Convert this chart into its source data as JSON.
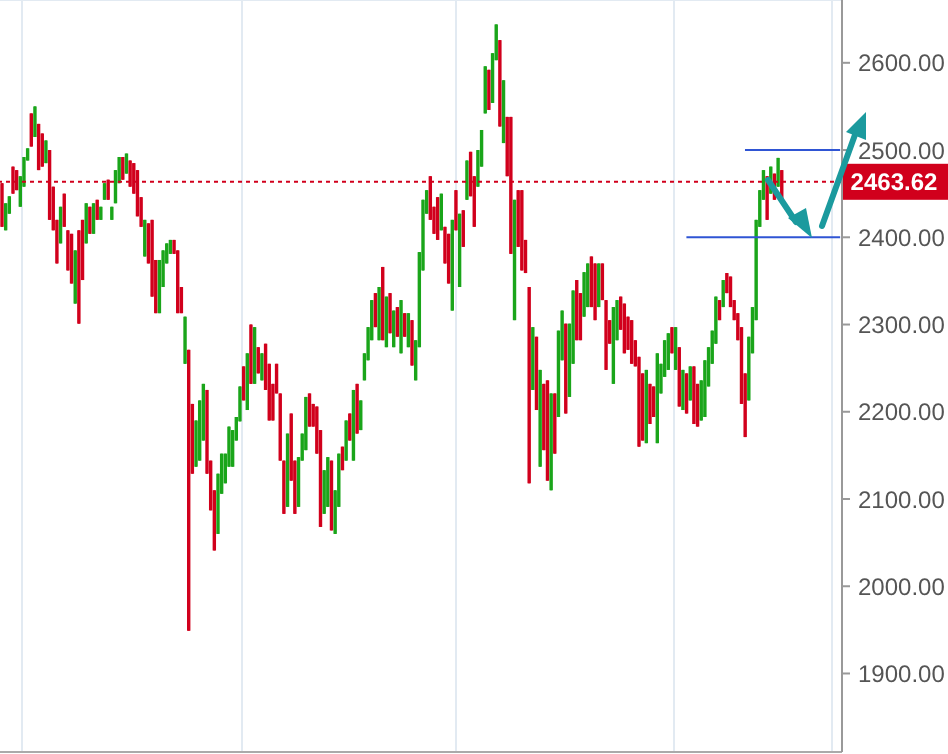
{
  "chart_data": {
    "type": "candlestick",
    "categories": [
      null,
      null,
      null,
      null,
      null,
      null,
      null,
      null,
      null,
      null,
      null,
      null,
      null,
      null,
      null,
      null,
      null,
      null,
      null,
      null,
      null,
      null,
      null,
      null,
      null,
      null,
      null,
      null,
      null,
      null,
      null,
      null,
      null,
      null,
      null,
      null,
      null,
      null,
      null,
      null,
      null,
      null,
      null,
      null,
      null,
      null,
      null,
      null,
      null,
      null,
      null,
      null,
      null,
      null,
      null,
      null,
      null,
      null,
      null,
      null,
      null,
      null,
      null,
      null,
      null,
      null,
      null,
      null,
      null,
      null,
      null,
      null,
      null,
      null,
      null,
      null,
      null,
      null,
      null,
      null,
      null,
      null,
      null,
      null,
      null,
      null,
      null,
      null,
      null,
      null,
      null,
      null,
      null,
      null,
      null,
      null,
      null,
      null,
      null,
      null,
      null,
      null,
      null,
      null,
      null,
      null,
      null,
      null,
      null,
      null,
      null,
      null,
      null,
      null,
      null,
      null,
      null,
      null,
      null,
      null,
      null,
      null,
      null,
      null,
      null,
      null,
      null,
      null,
      null,
      null,
      null,
      null,
      null,
      null,
      null,
      null,
      null,
      null,
      null,
      null,
      null,
      null,
      null,
      null,
      null,
      null,
      null,
      null,
      null,
      null,
      null,
      null,
      null,
      null,
      null,
      null,
      null,
      null,
      null,
      null,
      null,
      null,
      null,
      null,
      null,
      null,
      null,
      null,
      null,
      null,
      null,
      null,
      null,
      null,
      null,
      null,
      null,
      null,
      null,
      null,
      null,
      null,
      null,
      null,
      null,
      null,
      null,
      null,
      null,
      null,
      null,
      null,
      null,
      null,
      null,
      null,
      null,
      null,
      null,
      null,
      null,
      null,
      null,
      null,
      null,
      null,
      null,
      null,
      null,
      null,
      null,
      null,
      null,
      null,
      null,
      null,
      null,
      null,
      null,
      null,
      null,
      null,
      null,
      null,
      null,
      null,
      null,
      null,
      null,
      null
    ],
    "ohlc": [
      [
        2462,
        2462,
        2412,
        2412
      ],
      [
        2408,
        2439,
        2408,
        2439
      ],
      [
        2427,
        2447,
        2427,
        2447
      ],
      [
        2481,
        2481,
        2450,
        2450
      ],
      [
        2477,
        2477,
        2454,
        2454
      ],
      [
        2435,
        2470,
        2435,
        2470
      ],
      [
        2458,
        2492,
        2458,
        2492
      ],
      [
        2488,
        2502,
        2488,
        2502
      ],
      [
        2542,
        2542,
        2504,
        2504
      ],
      [
        2515,
        2550,
        2515,
        2550
      ],
      [
        2530,
        2530,
        2477,
        2477
      ],
      [
        2519,
        2519,
        2481,
        2481
      ],
      [
        2485,
        2511,
        2485,
        2511
      ],
      [
        2500,
        2500,
        2420,
        2420
      ],
      [
        2458,
        2458,
        2408,
        2408
      ],
      [
        2420,
        2420,
        2370,
        2370
      ],
      [
        2393,
        2435,
        2393,
        2435
      ],
      [
        2450,
        2450,
        2412,
        2412
      ],
      [
        2408,
        2408,
        2362,
        2362
      ],
      [
        2404,
        2404,
        2347,
        2347
      ],
      [
        2324,
        2385,
        2324,
        2385
      ],
      [
        2408,
        2408,
        2301,
        2301
      ],
      [
        2420,
        2420,
        2351,
        2351
      ],
      [
        2393,
        2439,
        2393,
        2439
      ],
      [
        2435,
        2435,
        2404,
        2404
      ],
      [
        2404,
        2439,
        2404,
        2439
      ],
      [
        2443,
        2443,
        2420,
        2420
      ],
      [
        2420,
        2435,
        2420,
        2435
      ],
      [
        2443,
        2462,
        2443,
        2462
      ],
      [
        2466,
        2466,
        2443,
        2443
      ],
      [
        2420,
        2435,
        2420,
        2435
      ],
      [
        2439,
        2477,
        2439,
        2477
      ],
      [
        2462,
        2492,
        2462,
        2492
      ],
      [
        2492,
        2492,
        2466,
        2466
      ],
      [
        2473,
        2496,
        2473,
        2496
      ],
      [
        2488,
        2488,
        2458,
        2458
      ],
      [
        2485,
        2485,
        2450,
        2450
      ],
      [
        2477,
        2477,
        2424,
        2424
      ],
      [
        2446,
        2446,
        2412,
        2412
      ],
      [
        2378,
        2420,
        2378,
        2420
      ],
      [
        2416,
        2416,
        2370,
        2370
      ],
      [
        2420,
        2420,
        2332,
        2332
      ],
      [
        2374,
        2374,
        2313,
        2313
      ],
      [
        2313,
        2374,
        2313,
        2374
      ],
      [
        2343,
        2385,
        2343,
        2385
      ],
      [
        2370,
        2393,
        2370,
        2393
      ],
      [
        2381,
        2397,
        2381,
        2397
      ],
      [
        2397,
        2397,
        2381,
        2381
      ],
      [
        2385,
        2385,
        2313,
        2313
      ],
      [
        2343,
        2343,
        2313,
        2313
      ],
      [
        2255,
        2309,
        2255,
        2309
      ],
      [
        2271,
        2271,
        1949,
        1949
      ],
      [
        2209,
        2209,
        2129,
        2129
      ],
      [
        2137,
        2190,
        2137,
        2190
      ],
      [
        2144,
        2213,
        2144,
        2213
      ],
      [
        2167,
        2232,
        2167,
        2232
      ],
      [
        2225,
        2225,
        2129,
        2129
      ],
      [
        2144,
        2144,
        2087,
        2087
      ],
      [
        2110,
        2110,
        2041,
        2041
      ],
      [
        2060,
        2129,
        2060,
        2129
      ],
      [
        2106,
        2152,
        2106,
        2152
      ],
      [
        2118,
        2152,
        2118,
        2152
      ],
      [
        2137,
        2183,
        2137,
        2183
      ],
      [
        2137,
        2179,
        2137,
        2179
      ],
      [
        2167,
        2194,
        2167,
        2194
      ],
      [
        2189,
        2229,
        2189,
        2229
      ],
      [
        2252,
        2252,
        2213,
        2213
      ],
      [
        2202,
        2267,
        2202,
        2267
      ],
      [
        2300,
        2300,
        2232,
        2232
      ],
      [
        2232,
        2297,
        2232,
        2297
      ],
      [
        2274,
        2274,
        2244,
        2244
      ],
      [
        2236,
        2267,
        2236,
        2267
      ],
      [
        2278,
        2278,
        2225,
        2225
      ],
      [
        2255,
        2255,
        2190,
        2190
      ],
      [
        2232,
        2232,
        2190,
        2190
      ],
      [
        2255,
        2255,
        2221,
        2221
      ],
      [
        2221,
        2221,
        2144,
        2144
      ],
      [
        2144,
        2144,
        2083,
        2083
      ],
      [
        2091,
        2175,
        2091,
        2175
      ],
      [
        2198,
        2198,
        2121,
        2121
      ],
      [
        2144,
        2144,
        2083,
        2083
      ],
      [
        2091,
        2148,
        2091,
        2148
      ],
      [
        2144,
        2175,
        2144,
        2175
      ],
      [
        2156,
        2217,
        2156,
        2217
      ],
      [
        2221,
        2221,
        2183,
        2183
      ],
      [
        2209,
        2209,
        2183,
        2183
      ],
      [
        2206,
        2206,
        2152,
        2152
      ],
      [
        2179,
        2179,
        2068,
        2068
      ],
      [
        2083,
        2133,
        2083,
        2133
      ],
      [
        2091,
        2148,
        2091,
        2148
      ],
      [
        2144,
        2144,
        2064,
        2064
      ],
      [
        2060,
        2110,
        2060,
        2110
      ],
      [
        2091,
        2152,
        2091,
        2152
      ],
      [
        2160,
        2160,
        2133,
        2133
      ],
      [
        2144,
        2190,
        2144,
        2190
      ],
      [
        2198,
        2198,
        2167,
        2167
      ],
      [
        2144,
        2225,
        2144,
        2225
      ],
      [
        2232,
        2232,
        2175,
        2175
      ],
      [
        2179,
        2213,
        2179,
        2213
      ],
      [
        2236,
        2267,
        2236,
        2267
      ],
      [
        2259,
        2297,
        2259,
        2297
      ],
      [
        2282,
        2328,
        2282,
        2328
      ],
      [
        2336,
        2336,
        2297,
        2297
      ],
      [
        2282,
        2343,
        2282,
        2343
      ],
      [
        2366,
        2366,
        2282,
        2282
      ],
      [
        2274,
        2332,
        2274,
        2332
      ],
      [
        2336,
        2336,
        2290,
        2290
      ],
      [
        2274,
        2316,
        2274,
        2316
      ],
      [
        2320,
        2320,
        2286,
        2286
      ],
      [
        2267,
        2328,
        2267,
        2328
      ],
      [
        2313,
        2313,
        2286,
        2286
      ],
      [
        2274,
        2313,
        2274,
        2313
      ],
      [
        2305,
        2305,
        2253,
        2253
      ],
      [
        2236,
        2282,
        2236,
        2282
      ],
      [
        2274,
        2383,
        2274,
        2383
      ],
      [
        2362,
        2443,
        2362,
        2443
      ],
      [
        2427,
        2454,
        2427,
        2454
      ],
      [
        2470,
        2470,
        2420,
        2420
      ],
      [
        2435,
        2435,
        2404,
        2404
      ],
      [
        2446,
        2446,
        2397,
        2397
      ],
      [
        2408,
        2450,
        2408,
        2450
      ],
      [
        2412,
        2412,
        2370,
        2370
      ],
      [
        2404,
        2404,
        2347,
        2347
      ],
      [
        2316,
        2420,
        2316,
        2420
      ],
      [
        2454,
        2454,
        2408,
        2408
      ],
      [
        2343,
        2427,
        2343,
        2427
      ],
      [
        2431,
        2431,
        2389,
        2389
      ],
      [
        2443,
        2488,
        2443,
        2488
      ],
      [
        2498,
        2498,
        2447,
        2447
      ],
      [
        2470,
        2470,
        2412,
        2412
      ],
      [
        2458,
        2500,
        2458,
        2500
      ],
      [
        2481,
        2523,
        2481,
        2523
      ],
      [
        2542,
        2596,
        2542,
        2596
      ],
      [
        2592,
        2592,
        2546,
        2546
      ],
      [
        2554,
        2611,
        2554,
        2611
      ],
      [
        2603,
        2644,
        2603,
        2644
      ],
      [
        2626,
        2626,
        2527,
        2527
      ],
      [
        2508,
        2580,
        2508,
        2580
      ],
      [
        2538,
        2538,
        2470,
        2470
      ],
      [
        2538,
        2538,
        2381,
        2381
      ],
      [
        2305,
        2443,
        2305,
        2443
      ],
      [
        2454,
        2454,
        2389,
        2389
      ],
      [
        2454,
        2454,
        2362,
        2362
      ],
      [
        2397,
        2397,
        2359,
        2359
      ],
      [
        2343,
        2343,
        2118,
        2118
      ],
      [
        2225,
        2297,
        2225,
        2297
      ],
      [
        2286,
        2286,
        2202,
        2202
      ],
      [
        2137,
        2248,
        2137,
        2248
      ],
      [
        2232,
        2232,
        2156,
        2156
      ],
      [
        2236,
        2236,
        2121,
        2121
      ],
      [
        2110,
        2221,
        2110,
        2221
      ],
      [
        2221,
        2221,
        2152,
        2152
      ],
      [
        2194,
        2293,
        2194,
        2293
      ],
      [
        2259,
        2316,
        2259,
        2316
      ],
      [
        2301,
        2301,
        2198,
        2198
      ],
      [
        2217,
        2301,
        2217,
        2301
      ],
      [
        2255,
        2339,
        2255,
        2339
      ],
      [
        2351,
        2351,
        2282,
        2282
      ],
      [
        2336,
        2336,
        2282,
        2282
      ],
      [
        2309,
        2360,
        2309,
        2360
      ],
      [
        2320,
        2370,
        2320,
        2370
      ],
      [
        2378,
        2378,
        2320,
        2320
      ],
      [
        2370,
        2370,
        2305,
        2305
      ],
      [
        2320,
        2370,
        2320,
        2370
      ],
      [
        2370,
        2370,
        2328,
        2328
      ],
      [
        2328,
        2328,
        2248,
        2248
      ],
      [
        2305,
        2305,
        2278,
        2278
      ],
      [
        2232,
        2320,
        2232,
        2320
      ],
      [
        2282,
        2328,
        2282,
        2328
      ],
      [
        2332,
        2332,
        2294,
        2294
      ],
      [
        2324,
        2324,
        2267,
        2267
      ],
      [
        2309,
        2309,
        2271,
        2271
      ],
      [
        2305,
        2305,
        2255,
        2255
      ],
      [
        2282,
        2282,
        2252,
        2252
      ],
      [
        2263,
        2263,
        2160,
        2160
      ],
      [
        2244,
        2244,
        2167,
        2167
      ],
      [
        2164,
        2248,
        2164,
        2248
      ],
      [
        2232,
        2232,
        2186,
        2186
      ],
      [
        2229,
        2229,
        2194,
        2194
      ],
      [
        2164,
        2267,
        2164,
        2267
      ],
      [
        2221,
        2255,
        2221,
        2255
      ],
      [
        2240,
        2282,
        2240,
        2282
      ],
      [
        2248,
        2290,
        2248,
        2290
      ],
      [
        2297,
        2297,
        2267,
        2267
      ],
      [
        2248,
        2297,
        2248,
        2297
      ],
      [
        2274,
        2274,
        2206,
        2206
      ],
      [
        2202,
        2248,
        2202,
        2248
      ],
      [
        2244,
        2244,
        2198,
        2198
      ],
      [
        2213,
        2252,
        2213,
        2252
      ],
      [
        2252,
        2252,
        2186,
        2186
      ],
      [
        2232,
        2232,
        2183,
        2183
      ],
      [
        2190,
        2236,
        2190,
        2236
      ],
      [
        2194,
        2259,
        2194,
        2259
      ],
      [
        2229,
        2274,
        2229,
        2274
      ],
      [
        2255,
        2293,
        2255,
        2293
      ],
      [
        2278,
        2332,
        2278,
        2332
      ],
      [
        2328,
        2328,
        2305,
        2305
      ],
      [
        2320,
        2351,
        2320,
        2351
      ],
      [
        2359,
        2359,
        2336,
        2336
      ],
      [
        2355,
        2355,
        2320,
        2320
      ],
      [
        2328,
        2328,
        2305,
        2305
      ],
      [
        2313,
        2313,
        2282,
        2282
      ],
      [
        2297,
        2297,
        2209,
        2209
      ],
      [
        2244,
        2244,
        2171,
        2171
      ],
      [
        2213,
        2286,
        2213,
        2286
      ],
      [
        2267,
        2320,
        2267,
        2320
      ],
      [
        2305,
        2420,
        2305,
        2420
      ],
      [
        2412,
        2454,
        2412,
        2454
      ],
      [
        2443,
        2477,
        2443,
        2477
      ],
      [
        2470,
        2470,
        2420,
        2420
      ],
      [
        2450,
        2481,
        2450,
        2481
      ],
      [
        2473,
        2473,
        2443,
        2443
      ],
      [
        2458,
        2491,
        2458,
        2491
      ],
      [
        2477,
        2477,
        2443,
        2443
      ],
      null,
      null,
      null,
      null,
      null,
      null,
      null,
      null,
      null,
      null,
      null,
      null,
      null,
      null,
      null,
      null
    ],
    "colors": [
      "#d1001c",
      "#1aa51a",
      "#1aa51a",
      "#d1001c",
      "#d1001c",
      "#1aa51a",
      "#1aa51a",
      "#1aa51a",
      "#d1001c",
      "#1aa51a",
      "#d1001c",
      "#d1001c",
      "#1aa51a",
      "#d1001c",
      "#d1001c",
      "#d1001c",
      "#1aa51a",
      "#d1001c",
      "#d1001c",
      "#d1001c",
      "#1aa51a",
      "#d1001c",
      "#d1001c",
      "#1aa51a",
      "#d1001c",
      "#1aa51a",
      "#d1001c",
      "#1aa51a",
      "#1aa51a",
      "#d1001c",
      "#1aa51a",
      "#1aa51a",
      "#1aa51a",
      "#d1001c",
      "#1aa51a",
      "#d1001c",
      "#d1001c",
      "#d1001c",
      "#d1001c",
      "#1aa51a",
      "#d1001c",
      "#d1001c",
      "#d1001c",
      "#1aa51a",
      "#1aa51a",
      "#1aa51a",
      "#1aa51a",
      "#d1001c",
      "#d1001c",
      "#d1001c",
      "#1aa51a",
      "#d1001c",
      "#d1001c",
      "#1aa51a",
      "#1aa51a",
      "#1aa51a",
      "#d1001c",
      "#d1001c",
      "#d1001c",
      "#1aa51a",
      "#1aa51a",
      "#1aa51a",
      "#1aa51a",
      "#1aa51a",
      "#1aa51a",
      "#1aa51a",
      "#d1001c",
      "#1aa51a",
      "#d1001c",
      "#1aa51a",
      "#d1001c",
      "#1aa51a",
      "#d1001c",
      "#d1001c",
      "#d1001c",
      "#d1001c",
      "#d1001c",
      "#d1001c",
      "#1aa51a",
      "#d1001c",
      "#d1001c",
      "#1aa51a",
      "#1aa51a",
      "#1aa51a",
      "#d1001c",
      "#d1001c",
      "#d1001c",
      "#d1001c",
      "#1aa51a",
      "#1aa51a",
      "#d1001c",
      "#1aa51a",
      "#1aa51a",
      "#d1001c",
      "#1aa51a",
      "#d1001c",
      "#1aa51a",
      "#d1001c",
      "#1aa51a",
      "#1aa51a",
      "#1aa51a",
      "#1aa51a",
      "#d1001c",
      "#1aa51a",
      "#d1001c",
      "#1aa51a",
      "#d1001c",
      "#1aa51a",
      "#d1001c",
      "#1aa51a",
      "#d1001c",
      "#1aa51a",
      "#d1001c",
      "#1aa51a",
      "#1aa51a",
      "#1aa51a",
      "#1aa51a",
      "#d1001c",
      "#d1001c",
      "#d1001c",
      "#1aa51a",
      "#d1001c",
      "#d1001c",
      "#1aa51a",
      "#d1001c",
      "#1aa51a",
      "#d1001c",
      "#1aa51a",
      "#d1001c",
      "#d1001c",
      "#1aa51a",
      "#1aa51a",
      "#1aa51a",
      "#d1001c",
      "#1aa51a",
      "#1aa51a",
      "#d1001c",
      "#1aa51a",
      "#d1001c",
      "#d1001c",
      "#1aa51a",
      "#d1001c",
      "#d1001c",
      "#d1001c",
      "#d1001c",
      "#1aa51a",
      "#d1001c",
      "#1aa51a",
      "#d1001c",
      "#d1001c",
      "#1aa51a",
      "#d1001c",
      "#1aa51a",
      "#1aa51a",
      "#d1001c",
      "#1aa51a",
      "#1aa51a",
      "#d1001c",
      "#d1001c",
      "#1aa51a",
      "#1aa51a",
      "#d1001c",
      "#d1001c",
      "#1aa51a",
      "#d1001c",
      "#d1001c",
      "#d1001c",
      "#1aa51a",
      "#1aa51a",
      "#d1001c",
      "#d1001c",
      "#d1001c",
      "#d1001c",
      "#d1001c",
      "#d1001c",
      "#d1001c",
      "#1aa51a",
      "#d1001c",
      "#d1001c",
      "#1aa51a",
      "#1aa51a",
      "#1aa51a",
      "#1aa51a",
      "#d1001c",
      "#1aa51a",
      "#d1001c",
      "#1aa51a",
      "#d1001c",
      "#1aa51a",
      "#d1001c",
      "#d1001c",
      "#1aa51a",
      "#1aa51a",
      "#1aa51a",
      "#1aa51a",
      "#1aa51a",
      "#d1001c",
      "#1aa51a",
      "#d1001c",
      "#d1001c",
      "#d1001c",
      "#d1001c",
      "#d1001c",
      "#d1001c",
      "#1aa51a",
      "#1aa51a",
      "#1aa51a",
      "#1aa51a",
      "#1aa51a",
      "#d1001c",
      "#1aa51a",
      "#d1001c",
      "#1aa51a",
      "#d1001c",
      null,
      null,
      null,
      null,
      null,
      null,
      null,
      null,
      null,
      null,
      null,
      null,
      null,
      null,
      null,
      null
    ],
    "ylim": [
      1810,
      2672
    ],
    "yticks": [
      {
        "value": 1900,
        "label": "1900.00"
      },
      {
        "value": 2000,
        "label": "2000.00"
      },
      {
        "value": 2100,
        "label": "2100.00"
      },
      {
        "value": 2200,
        "label": "2200.00"
      },
      {
        "value": 2300,
        "label": "2300.00"
      },
      {
        "value": 2400,
        "label": "2400.00"
      },
      {
        "value": 2500,
        "label": "2500.00"
      },
      {
        "value": 2600,
        "label": "2600.00"
      }
    ],
    "ref_lines": [
      {
        "axis": "y",
        "value": 2463.62,
        "label": "2463.62",
        "color": "#d1001c",
        "line_style": "dotted"
      },
      {
        "axis": "y",
        "value": 2500,
        "color": "#2f55d4",
        "line_style": "solid"
      },
      {
        "axis": "y",
        "value": 2400,
        "color": "#2f55d4",
        "line_style": "solid"
      }
    ],
    "grid": true,
    "tick_labels": "y"
  }
}
